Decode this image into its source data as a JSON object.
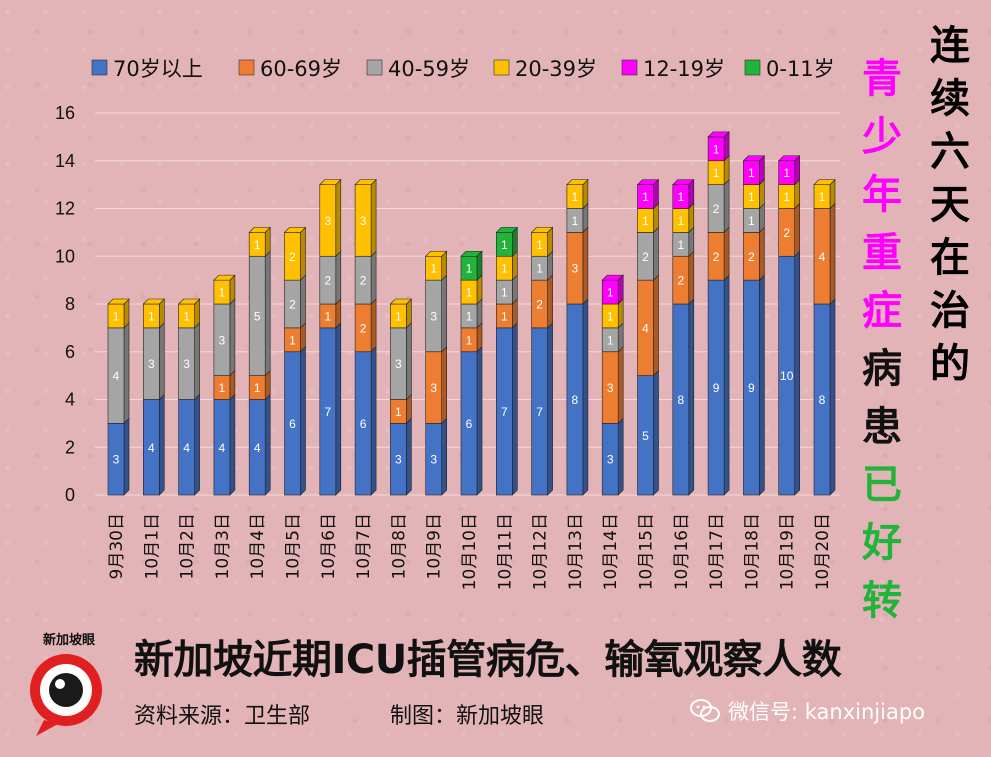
{
  "chart_data": {
    "type": "bar",
    "stacked": true,
    "categories": [
      "9月30日",
      "10月1日",
      "10月2日",
      "10月3日",
      "10月4日",
      "10月5日",
      "10月6日",
      "10月7日",
      "10月8日",
      "10月9日",
      "10月10日",
      "10月11日",
      "10月12日",
      "10月13日",
      "10月14日",
      "10月15日",
      "10月16日",
      "10月17日",
      "10月18日",
      "10月19日",
      "10月20日"
    ],
    "series": [
      {
        "name": "70岁以上",
        "color": "#4472c4",
        "values": [
          3,
          4,
          4,
          4,
          4,
          6,
          7,
          6,
          3,
          3,
          6,
          7,
          7,
          8,
          3,
          5,
          8,
          9,
          9,
          10,
          8
        ]
      },
      {
        "name": "60-69岁",
        "color": "#ed7d31",
        "values": [
          0,
          0,
          0,
          1,
          1,
          1,
          1,
          2,
          1,
          3,
          1,
          1,
          2,
          3,
          3,
          4,
          2,
          2,
          2,
          2,
          4
        ]
      },
      {
        "name": "40-59岁",
        "color": "#a5a5a5",
        "values": [
          4,
          3,
          3,
          3,
          5,
          2,
          2,
          2,
          3,
          3,
          1,
          1,
          1,
          1,
          1,
          2,
          1,
          2,
          1,
          0,
          0
        ]
      },
      {
        "name": "20-39岁",
        "color": "#ffc000",
        "values": [
          1,
          1,
          1,
          1,
          1,
          2,
          3,
          3,
          1,
          1,
          1,
          1,
          1,
          1,
          1,
          1,
          1,
          1,
          1,
          1,
          1
        ]
      },
      {
        "name": "12-19岁",
        "color": "#ff00ff",
        "values": [
          0,
          0,
          0,
          0,
          0,
          0,
          0,
          0,
          0,
          0,
          0,
          0,
          0,
          0,
          1,
          1,
          1,
          1,
          1,
          1,
          0
        ]
      },
      {
        "name": "0-11岁",
        "color": "#21b33a",
        "values": [
          0,
          0,
          0,
          0,
          0,
          0,
          0,
          0,
          0,
          0,
          1,
          1,
          0,
          0,
          0,
          0,
          0,
          0,
          0,
          0,
          0
        ]
      }
    ],
    "yticks": [
      0,
      2,
      4,
      6,
      8,
      10,
      12,
      14,
      16
    ],
    "ylim": [
      0,
      16
    ],
    "grid": true,
    "legend_position": "top",
    "title": "新加坡近期ICU插管病危、输氧观察人数"
  },
  "titles": {
    "main": "新加坡近期ICU插管病危、输氧观察人数",
    "source": "资料来源：卫生部",
    "producer": "制图：新加坡眼",
    "side_title_chars": [
      "连",
      "续",
      "六",
      "天",
      "在",
      "治",
      "的"
    ],
    "side_note_chars": [
      {
        "char": "青",
        "color": "#ff00ff"
      },
      {
        "char": "少",
        "color": "#ff00ff"
      },
      {
        "char": "年",
        "color": "#ff00ff"
      },
      {
        "char": "重",
        "color": "#ff00ff"
      },
      {
        "char": "症",
        "color": "#ff00ff"
      },
      {
        "char": "病",
        "color": "#111111"
      },
      {
        "char": "患",
        "color": "#111111"
      },
      {
        "char": "已",
        "color": "#21b33a"
      },
      {
        "char": "好",
        "color": "#21b33a"
      },
      {
        "char": "转",
        "color": "#21b33a"
      }
    ]
  },
  "logo": {
    "text": "新加坡眼",
    "icon": "eye-logo-icon"
  },
  "watermark": {
    "icon": "wechat-icon",
    "text": "微信号: kanxinjiapo"
  }
}
